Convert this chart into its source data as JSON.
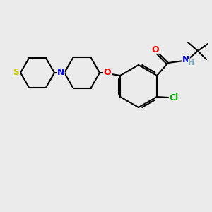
{
  "background_color": "#EBEBEB",
  "bond_color": "#000000",
  "atom_colors": {
    "O": "#FF0000",
    "N": "#0000FF",
    "S": "#CCCC00",
    "Cl": "#00AA00",
    "H": "#7BAFC8",
    "C": "#000000"
  },
  "line_width": 1.5,
  "font_size": 9
}
